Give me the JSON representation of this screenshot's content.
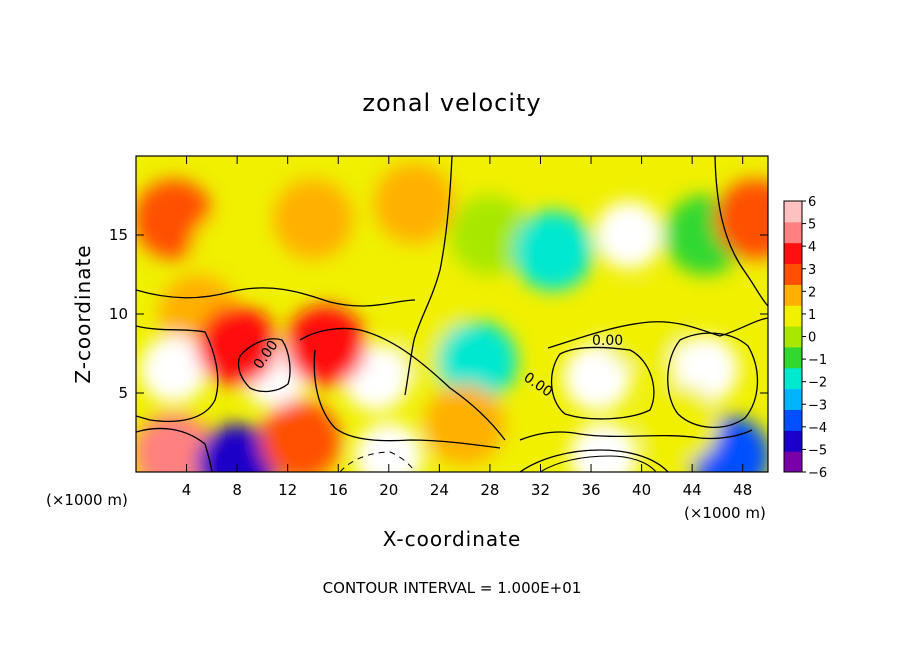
{
  "chart_data": {
    "type": "heatmap",
    "title": "zonal velocity",
    "xlabel": "X-coordinate",
    "ylabel": "Z-coordinate",
    "x_units": "(×1000 m)",
    "x_units_right": "(×1000 m)",
    "footer": "CONTOUR INTERVAL = 1.000E+01",
    "contour_label": "0.00",
    "xlim": [
      0,
      50
    ],
    "ylim": [
      0,
      20
    ],
    "x_ticks": [
      4,
      8,
      12,
      16,
      20,
      24,
      28,
      32,
      36,
      40,
      44,
      48
    ],
    "y_ticks": [
      5,
      10,
      15
    ],
    "colorbar": {
      "min": -6,
      "max": 6,
      "ticks": [
        6,
        5,
        4,
        3,
        2,
        1,
        0,
        -1,
        -2,
        -3,
        -4,
        -5,
        -6
      ],
      "tick_labels": [
        "6",
        "5",
        "4",
        "3",
        "2",
        "1",
        "0",
        "−1",
        "−2",
        "−3",
        "−4",
        "−5",
        "−6"
      ],
      "colors": [
        "#7a00a8",
        "#1a00c8",
        "#0050ff",
        "#00b4ff",
        "#00e8d0",
        "#30d830",
        "#a8e800",
        "#f0f000",
        "#ffb000",
        "#ff5000",
        "#ff1010",
        "#ff8080",
        "#ffc0c0"
      ],
      "out_of_range_color": "#ffffff"
    },
    "features": [
      {
        "x": 3,
        "z": 16,
        "value": 3.2
      },
      {
        "x": 7.5,
        "z": 14,
        "value": 0.6
      },
      {
        "x": 14,
        "z": 16,
        "value": 2.4
      },
      {
        "x": 22,
        "z": 17,
        "value": 2.0
      },
      {
        "x": 28,
        "z": 15,
        "value": 0.2
      },
      {
        "x": 33,
        "z": 14,
        "value": -2.0
      },
      {
        "x": 39,
        "z": 15,
        "value": -8
      },
      {
        "x": 45,
        "z": 15,
        "value": -1.5
      },
      {
        "x": 49,
        "z": 16,
        "value": 3.0
      },
      {
        "x": 5,
        "z": 10,
        "value": 2.4
      },
      {
        "x": 3,
        "z": 6.5,
        "value": -8
      },
      {
        "x": 11,
        "z": 6.2,
        "value": -8
      },
      {
        "x": 8,
        "z": 8,
        "value": 4.0
      },
      {
        "x": 19,
        "z": 6,
        "value": 8
      },
      {
        "x": 15,
        "z": 8,
        "value": 4.0
      },
      {
        "x": 24,
        "z": 8,
        "value": 0.5
      },
      {
        "x": 27,
        "z": 7,
        "value": -2.0
      },
      {
        "x": 36.5,
        "z": 6,
        "value": -8
      },
      {
        "x": 45,
        "z": 6.5,
        "value": 8
      },
      {
        "x": 40,
        "z": 9,
        "value": 0.5
      },
      {
        "x": 20,
        "z": 1,
        "value": -8
      },
      {
        "x": 37,
        "z": 1,
        "value": 8
      },
      {
        "x": 3,
        "z": 1.2,
        "value": 4.5
      },
      {
        "x": 8,
        "z": 0.5,
        "value": -5
      },
      {
        "x": 13,
        "z": 2,
        "value": 2.5
      },
      {
        "x": 26,
        "z": 3,
        "value": 2.0
      },
      {
        "x": 47,
        "z": 1,
        "value": -4.5
      },
      {
        "x": 43,
        "z": 3,
        "value": 0.5
      }
    ]
  }
}
